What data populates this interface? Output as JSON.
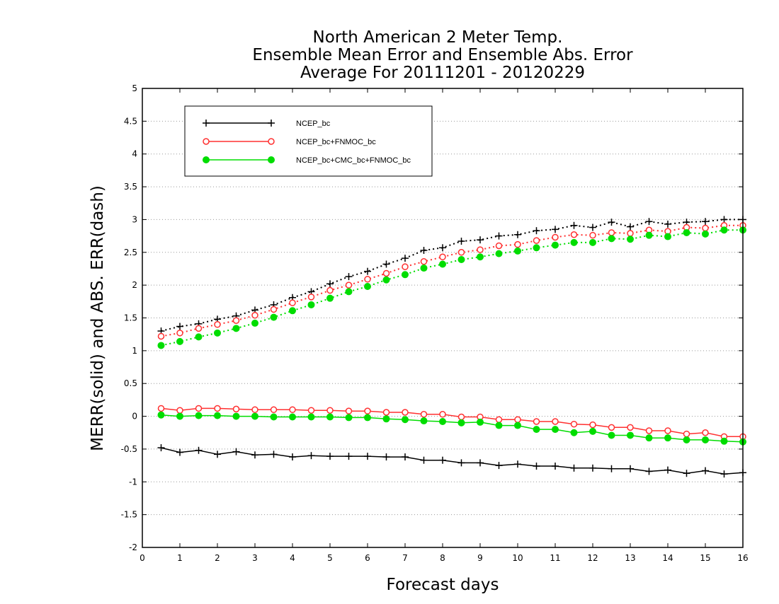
{
  "chart_data": {
    "type": "line",
    "title": [
      "North American 2 Meter Temp.",
      "Ensemble Mean Error and Ensemble Abs. Error",
      "Average For 20111201 - 20120229"
    ],
    "xlabel": "Forecast days",
    "ylabel": "MERR(solid) and ABS. ERR(dash)",
    "xlim": [
      0,
      16
    ],
    "ylim": [
      -2,
      5
    ],
    "xticks": [
      "0",
      "1",
      "2",
      "3",
      "4",
      "5",
      "6",
      "7",
      "8",
      "9",
      "10",
      "11",
      "12",
      "13",
      "14",
      "15",
      "16"
    ],
    "yticks": [
      "-2",
      "-1.5",
      "-1",
      "-0.5",
      "0",
      "0.5",
      "1",
      "1.5",
      "2",
      "2.5",
      "3",
      "3.5",
      "4",
      "4.5",
      "5"
    ],
    "grid": true,
    "legend_position": "top-left",
    "x": [
      0.5,
      1,
      1.5,
      2,
      2.5,
      3,
      3.5,
      4,
      4.5,
      5,
      5.5,
      6,
      6.5,
      7,
      7.5,
      8,
      8.5,
      9,
      9.5,
      10,
      10.5,
      11,
      11.5,
      12,
      12.5,
      13,
      13.5,
      14,
      14.5,
      15,
      15.5,
      16
    ],
    "series": [
      {
        "name": "NCEP_bc",
        "color": "#000000",
        "marker": "plus",
        "merr": [
          -0.48,
          -0.55,
          -0.52,
          -0.58,
          -0.54,
          -0.59,
          -0.58,
          -0.62,
          -0.6,
          -0.61,
          -0.61,
          -0.61,
          -0.62,
          -0.62,
          -0.67,
          -0.67,
          -0.71,
          -0.71,
          -0.75,
          -0.73,
          -0.76,
          -0.76,
          -0.79,
          -0.79,
          -0.8,
          -0.8,
          -0.84,
          -0.82,
          -0.87,
          -0.83,
          -0.88,
          -0.86
        ],
        "abs_err": [
          1.3,
          1.37,
          1.41,
          1.48,
          1.53,
          1.62,
          1.7,
          1.81,
          1.9,
          2.02,
          2.13,
          2.21,
          2.32,
          2.41,
          2.53,
          2.57,
          2.67,
          2.69,
          2.75,
          2.77,
          2.83,
          2.85,
          2.91,
          2.88,
          2.96,
          2.89,
          2.97,
          2.93,
          2.96,
          2.97,
          3.0,
          3.0
        ]
      },
      {
        "name": "NCEP_bc+FNMOC_bc",
        "color": "#ff3030",
        "marker": "open-circle",
        "merr": [
          0.12,
          0.09,
          0.12,
          0.12,
          0.11,
          0.1,
          0.1,
          0.1,
          0.09,
          0.09,
          0.08,
          0.08,
          0.06,
          0.06,
          0.03,
          0.03,
          -0.01,
          -0.01,
          -0.05,
          -0.05,
          -0.08,
          -0.08,
          -0.12,
          -0.13,
          -0.17,
          -0.17,
          -0.22,
          -0.22,
          -0.27,
          -0.25,
          -0.31,
          -0.31
        ],
        "abs_err": [
          1.22,
          1.27,
          1.34,
          1.4,
          1.46,
          1.54,
          1.63,
          1.73,
          1.82,
          1.92,
          2.0,
          2.09,
          2.18,
          2.28,
          2.36,
          2.43,
          2.5,
          2.54,
          2.6,
          2.62,
          2.68,
          2.73,
          2.77,
          2.76,
          2.8,
          2.79,
          2.84,
          2.82,
          2.88,
          2.87,
          2.91,
          2.91
        ]
      },
      {
        "name": "NCEP_bc+CMC_bc+FNMOC_bc",
        "color": "#00dd00",
        "marker": "filled-circle",
        "merr": [
          0.02,
          0.0,
          0.01,
          0.01,
          0.0,
          0.0,
          -0.01,
          -0.01,
          -0.01,
          -0.01,
          -0.02,
          -0.02,
          -0.04,
          -0.05,
          -0.07,
          -0.08,
          -0.1,
          -0.09,
          -0.14,
          -0.14,
          -0.2,
          -0.2,
          -0.25,
          -0.23,
          -0.29,
          -0.29,
          -0.33,
          -0.33,
          -0.36,
          -0.36,
          -0.38,
          -0.39
        ],
        "abs_err": [
          1.08,
          1.14,
          1.21,
          1.27,
          1.34,
          1.42,
          1.51,
          1.61,
          1.7,
          1.8,
          1.9,
          1.98,
          2.08,
          2.16,
          2.26,
          2.32,
          2.39,
          2.43,
          2.48,
          2.52,
          2.57,
          2.61,
          2.65,
          2.65,
          2.71,
          2.7,
          2.76,
          2.74,
          2.8,
          2.78,
          2.84,
          2.84
        ]
      }
    ]
  }
}
